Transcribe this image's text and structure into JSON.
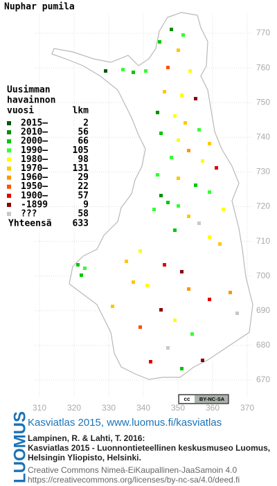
{
  "title": "Nuphar pumila",
  "legend": {
    "title_lines": [
      "Uusimman",
      "havainnon",
      "vuosi"
    ],
    "count_header": "lkm",
    "rows": [
      {
        "label": "2015–",
        "count": 2,
        "color": "#005a00"
      },
      {
        "label": "2010–",
        "count": 56,
        "color": "#009000"
      },
      {
        "label": "2000–",
        "count": 66,
        "color": "#00c800"
      },
      {
        "label": "1990–",
        "count": 105,
        "color": "#33ff33"
      },
      {
        "label": "1980–",
        "count": 98,
        "color": "#ffff00"
      },
      {
        "label": "1970–",
        "count": 131,
        "color": "#ffc800"
      },
      {
        "label": "1960–",
        "count": 29,
        "color": "#ff9600"
      },
      {
        "label": "1950–",
        "count": 22,
        "color": "#ff5000"
      },
      {
        "label": "1900–",
        "count": 57,
        "color": "#e00000"
      },
      {
        "label": "-1899",
        "count": 9,
        "color": "#8c0000"
      },
      {
        "label": "???",
        "count": 58,
        "color": "#c8c8c8"
      }
    ],
    "total_label": "Yhteensä",
    "total": 633
  },
  "grid": {
    "x_labels": [
      310,
      320,
      330,
      340,
      350,
      360,
      370
    ],
    "y_labels": [
      770,
      760,
      750,
      740,
      730,
      720,
      710,
      700,
      690,
      680,
      670
    ]
  },
  "license_badge": {
    "icon": "cc",
    "text": "BY-NC-SA"
  },
  "footer": {
    "brand": "LUOMUS",
    "link": "Kasviatlas 2015, www.luomus.fi/kasviatlas",
    "citation": [
      "Lampinen, R. & Lahti, T. 2016:",
      "Kasviatlas 2015 - Luonnontieteellinen keskusmuseo Luomus,",
      "Helsingin Yliopisto, Helsinki."
    ],
    "license": [
      "Creative Commons Nimeä-EiKaupallinen-JaaSamoin 4.0",
      "https://creativecommons.org/licenses/by-nc-sa/4.0/deed.fi"
    ]
  }
}
